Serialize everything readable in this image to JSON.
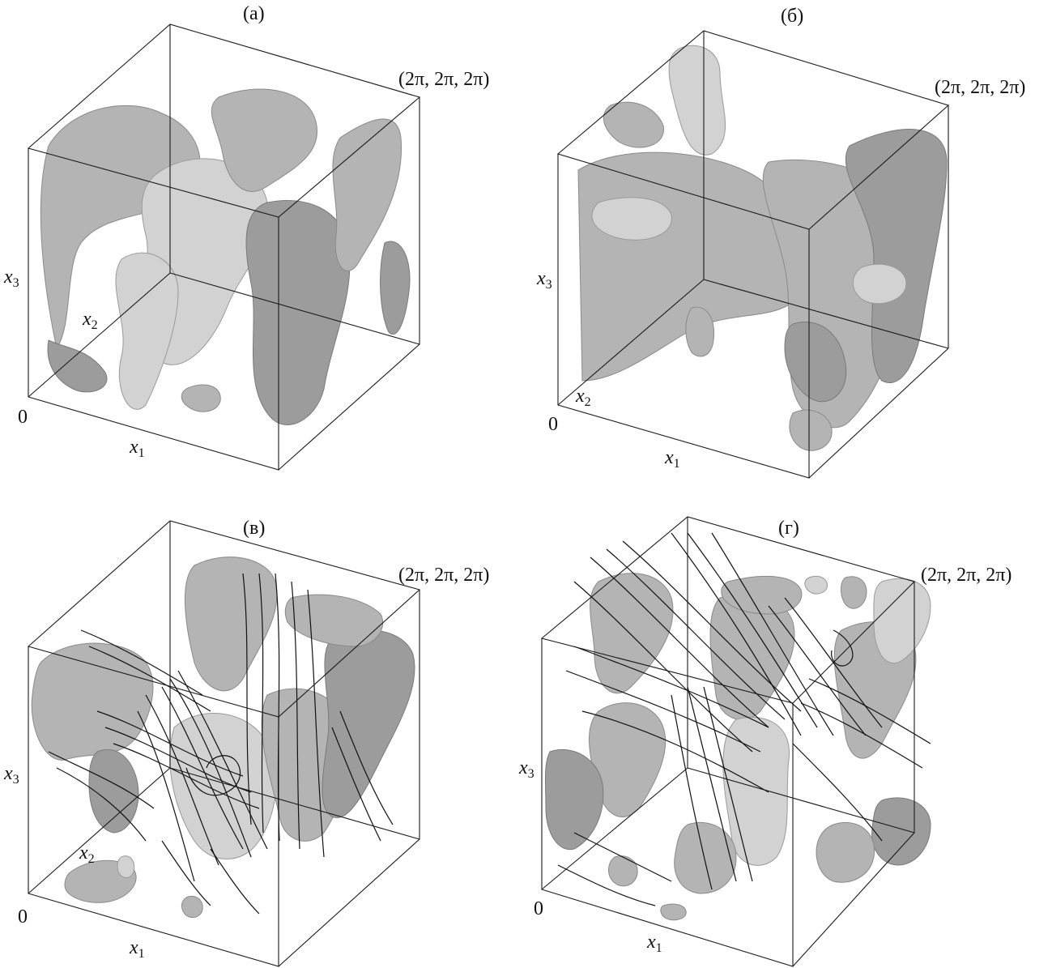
{
  "panels": [
    {
      "id": "a",
      "label": "(а)",
      "corner": "(2π, 2π, 2π)",
      "origin": "0",
      "x1": "x",
      "x1_sub": "1",
      "x2": "x",
      "x2_sub": "2",
      "x3": "x",
      "x3_sub": "3",
      "streamlines": false
    },
    {
      "id": "b",
      "label": "(б)",
      "corner": "(2π, 2π, 2π)",
      "origin": "0",
      "x1": "x",
      "x1_sub": "1",
      "x2": "x",
      "x2_sub": "2",
      "x3": "x",
      "x3_sub": "3",
      "streamlines": false
    },
    {
      "id": "v",
      "label": "(в)",
      "corner": "(2π, 2π, 2π)",
      "origin": "0",
      "x1": "x",
      "x1_sub": "1",
      "x2": "x",
      "x2_sub": "2",
      "x3": "x",
      "x3_sub": "3",
      "streamlines": true
    },
    {
      "id": "g",
      "label": "(г)",
      "corner": "(2π, 2π, 2π)",
      "origin": "0",
      "x1": "x",
      "x1_sub": "1",
      "x2": "x",
      "x2_sub": "2",
      "x3": "x",
      "x3_sub": "3",
      "streamlines": true
    }
  ],
  "colors": {
    "surface": "#b4b4b4",
    "edges": "#1a1a1a",
    "streamlines": "#111111"
  }
}
